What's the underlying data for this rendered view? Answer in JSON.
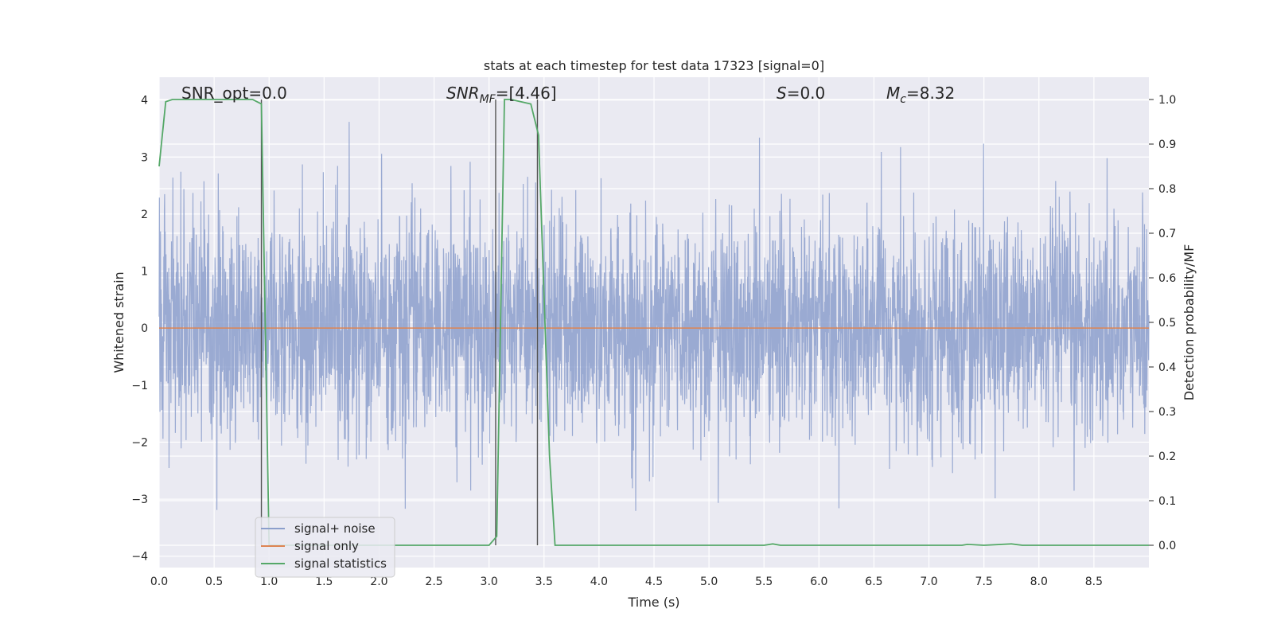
{
  "chart_data": {
    "type": "line",
    "title": "stats at each timestep for test data 17323 [signal=0]",
    "xlabel": "Time (s)",
    "ylabel_left": "Whitened strain",
    "ylabel_right": "Detection probability/MF",
    "xlim": [
      0,
      9.0
    ],
    "ylim_left": [
      -4.2,
      4.4
    ],
    "ylim_right": [
      -0.05,
      1.05
    ],
    "x_ticks": [
      "0.0",
      "0.5",
      "1.0",
      "1.5",
      "2.0",
      "2.5",
      "3.0",
      "3.5",
      "4.0",
      "4.5",
      "5.0",
      "5.5",
      "6.0",
      "6.5",
      "7.0",
      "7.5",
      "8.0",
      "8.5"
    ],
    "y_ticks_left": [
      "−4",
      "−3",
      "−2",
      "−1",
      "0",
      "1",
      "2",
      "3",
      "4"
    ],
    "y_ticks_right": [
      "0.0",
      "0.1",
      "0.2",
      "0.3",
      "0.4",
      "0.5",
      "0.6",
      "0.7",
      "0.8",
      "0.9",
      "1.0"
    ],
    "grid": true,
    "legend_placement": "lower left",
    "annotations": {
      "snr_opt": "SNR_opt=0.0",
      "snr_mf_base": "SNR",
      "snr_mf_sub": "MF",
      "snr_mf_value": "=[4.46]",
      "s_base": "S",
      "s_value": "=0.0",
      "mc_base": "M",
      "mc_sub": "c",
      "mc_value": "=8.32"
    },
    "vlines_x": [
      0.93,
      3.06,
      3.44
    ],
    "series": [
      {
        "name": "signal+ noise",
        "color": "#8c9fcc",
        "note_amplitude_std": 0.95,
        "points": 3600
      },
      {
        "name": "signal only",
        "color": "#dd8452",
        "x": [
          0,
          9.0
        ],
        "y": [
          0,
          0
        ]
      },
      {
        "name": "signal statistics",
        "color": "#55a868",
        "x": [
          0.0,
          0.06,
          0.12,
          0.3,
          0.6,
          0.85,
          0.93,
          1.0,
          1.1,
          1.5,
          2.0,
          2.5,
          3.0,
          3.07,
          3.14,
          3.2,
          3.38,
          3.45,
          3.55,
          3.6,
          3.7,
          4.0,
          5.0,
          5.5,
          5.58,
          5.65,
          6.0,
          7.0,
          7.3,
          7.35,
          7.5,
          7.75,
          7.85,
          8.5,
          9.0
        ],
        "y": [
          0.85,
          0.995,
          1.0,
          1.0,
          1.0,
          1.0,
          0.99,
          0.0,
          0.0,
          0.0,
          0.0,
          0.0,
          0.0,
          0.02,
          1.0,
          1.0,
          0.99,
          0.92,
          0.2,
          0.0,
          0.0,
          0.0,
          0.0,
          0.0,
          0.003,
          0.0,
          0.0,
          0.0,
          0.0,
          0.002,
          0.0,
          0.003,
          0.0,
          0.0,
          0.0
        ]
      }
    ]
  }
}
